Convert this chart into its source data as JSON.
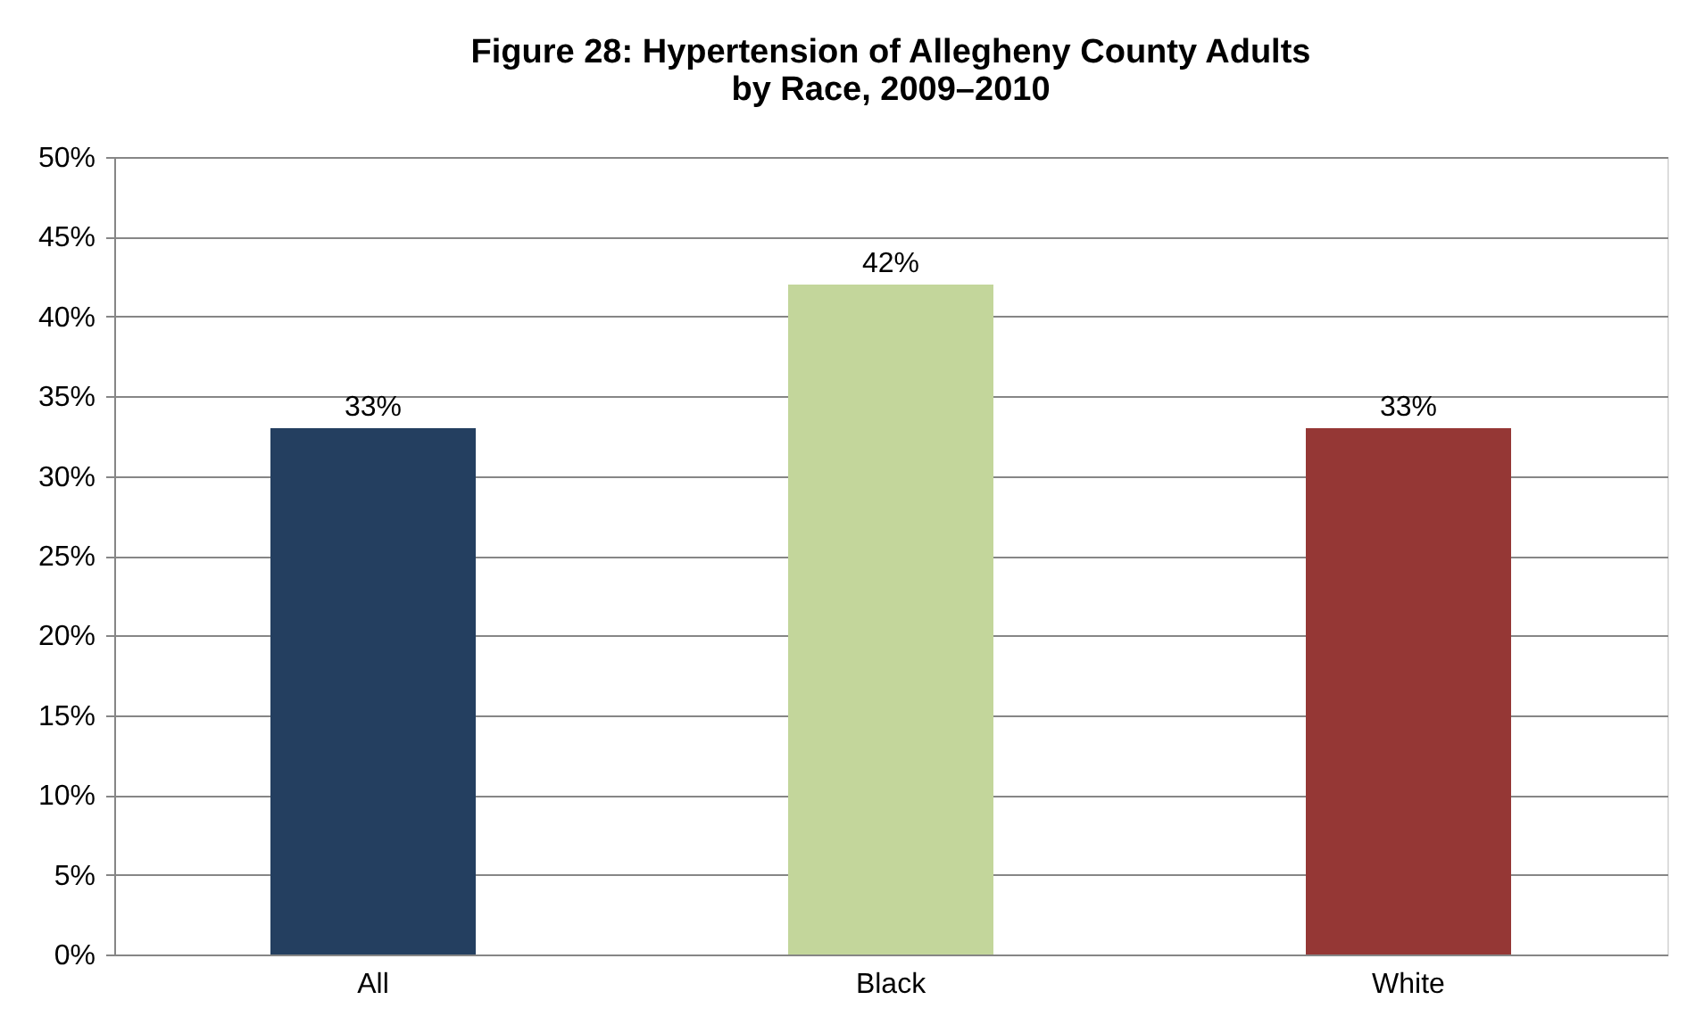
{
  "chart_data": {
    "type": "bar",
    "title": "Figure 28: Hypertension of Allegheny County Adults\nby Race, 2009–2010",
    "categories": [
      "All",
      "Black",
      "White"
    ],
    "values": [
      33,
      42,
      33
    ],
    "colors": [
      "#243f60",
      "#c3d69b",
      "#953735"
    ],
    "value_labels": [
      "33%",
      "42%",
      "33%"
    ],
    "ylim": [
      0,
      50
    ],
    "yticks": [
      {
        "value": 0,
        "label": "0%"
      },
      {
        "value": 5,
        "label": "5%"
      },
      {
        "value": 10,
        "label": "10%"
      },
      {
        "value": 15,
        "label": "15%"
      },
      {
        "value": 20,
        "label": "20%"
      },
      {
        "value": 25,
        "label": "25%"
      },
      {
        "value": 30,
        "label": "30%"
      },
      {
        "value": 35,
        "label": "35%"
      },
      {
        "value": 40,
        "label": "40%"
      },
      {
        "value": 45,
        "label": "45%"
      },
      {
        "value": 50,
        "label": "50%"
      }
    ],
    "grid": "y"
  }
}
